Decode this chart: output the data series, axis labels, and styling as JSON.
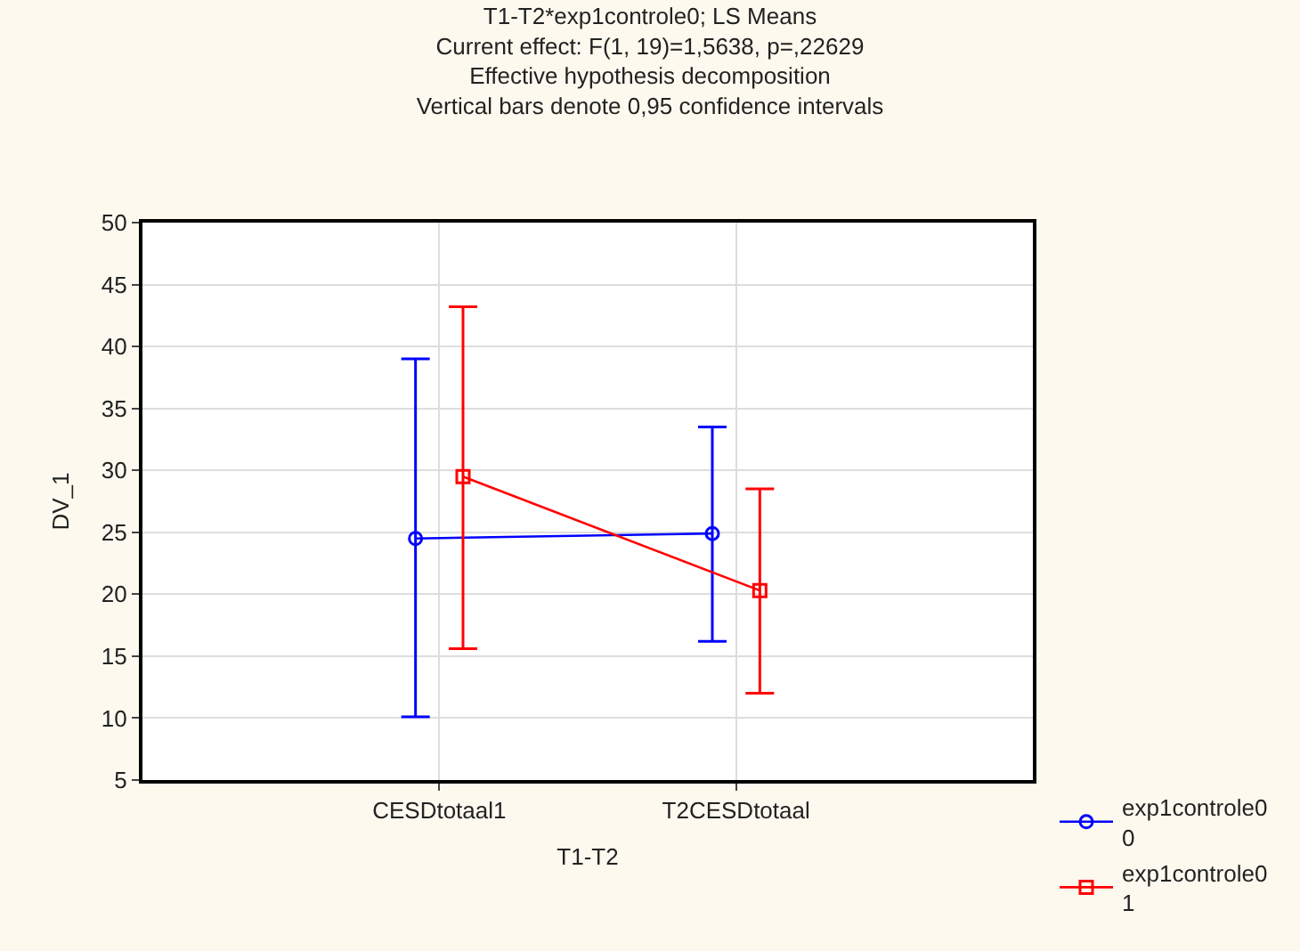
{
  "chart_data": {
    "type": "line",
    "title": "T1-T2*exp1controle0; LS Means",
    "subtitle": "Current effect: F(1, 19)=1,5638, p=,22629\nEffective hypothesis decomposition\nVertical bars denote 0,95 confidence intervals",
    "xlabel": "T1-T2",
    "ylabel": "DV_1",
    "categories": [
      "CESDtotaal1",
      "T2CESDtotaal"
    ],
    "series": [
      {
        "name": "exp1controle0\n0",
        "color": "#0000ff",
        "marker": "circle",
        "values": [
          24.5,
          24.9
        ],
        "errors": [
          [
            10.1,
            39.0
          ],
          [
            16.2,
            33.5
          ]
        ]
      },
      {
        "name": "exp1controle0\n1",
        "color": "#ff0000",
        "marker": "square",
        "values": [
          29.5,
          20.3
        ],
        "errors": [
          [
            15.6,
            43.2
          ],
          [
            12.0,
            28.5
          ]
        ]
      }
    ],
    "ylim": [
      5,
      50
    ],
    "yticks": [
      5,
      10,
      15,
      20,
      25,
      30,
      35,
      40,
      45,
      50
    ],
    "grid": true,
    "legend": "bottom right",
    "line_style": "solid"
  }
}
